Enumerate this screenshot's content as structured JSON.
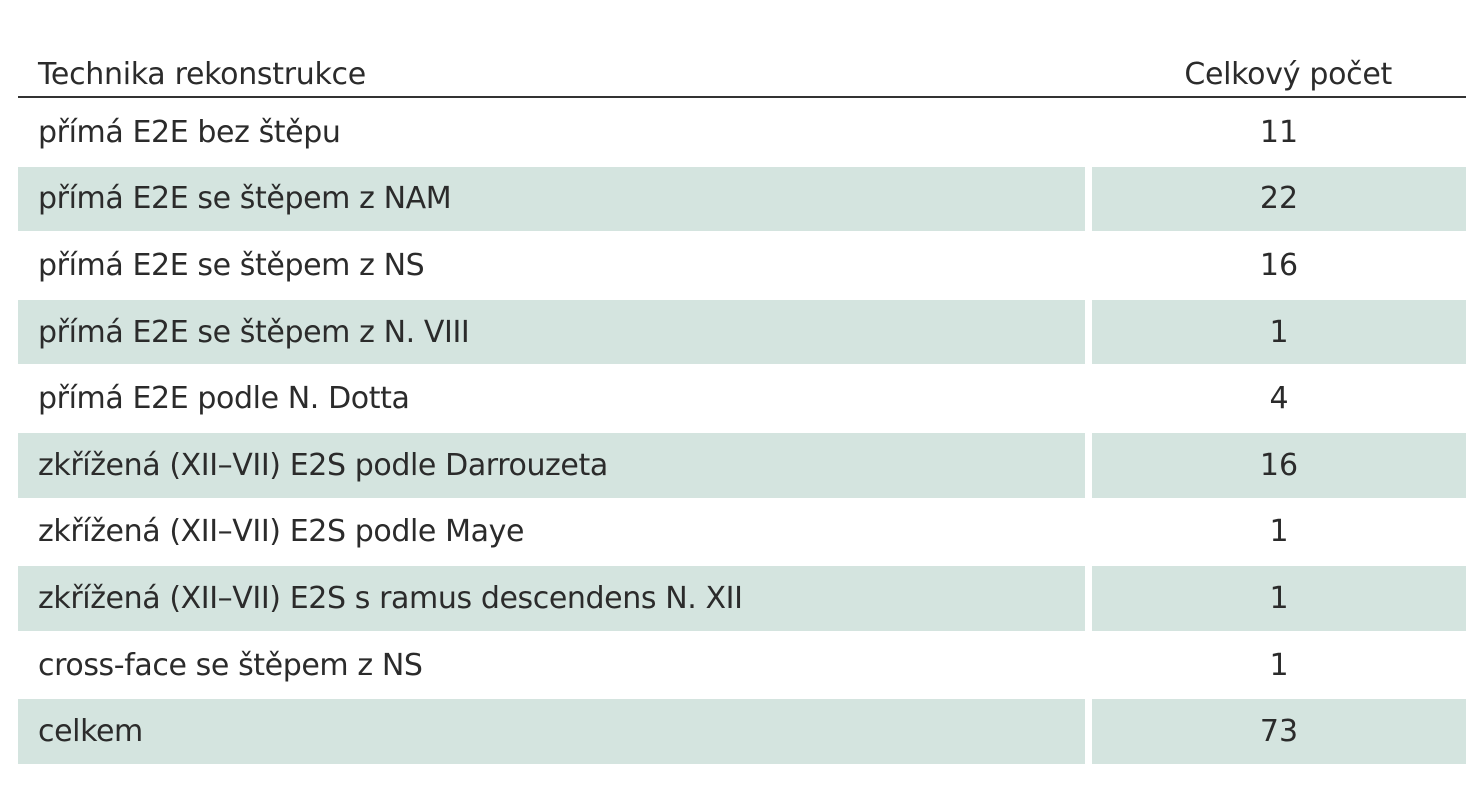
{
  "table": {
    "headers": {
      "technique": "Technika rekonstrukce",
      "count": "Celkový počet"
    },
    "rows": [
      {
        "technique": "přímá E2E bez štěpu",
        "count": "11"
      },
      {
        "technique": "přímá E2E se štěpem z NAM",
        "count": "22"
      },
      {
        "technique": "přímá E2E se štěpem z NS",
        "count": "16"
      },
      {
        "technique": "přímá E2E se štěpem z N. VIII",
        "count": "1"
      },
      {
        "technique": "přímá E2E podle N. Dotta",
        "count": "4"
      },
      {
        "technique": "zkřížená (XII–VII) E2S podle Darrouzeta",
        "count": "16"
      },
      {
        "technique": "zkřížená (XII–VII) E2S podle Maye",
        "count": "1"
      },
      {
        "technique": "zkřížená (XII–VII) E2S s ramus descendens N. XII",
        "count": "1"
      },
      {
        "technique": "cross-face se štěpem z NS",
        "count": "1"
      },
      {
        "technique": "celkem",
        "count": "73"
      }
    ]
  },
  "colors": {
    "row_shade": "#d4e4df",
    "rule": "#333333",
    "text": "#2b2b2b"
  }
}
